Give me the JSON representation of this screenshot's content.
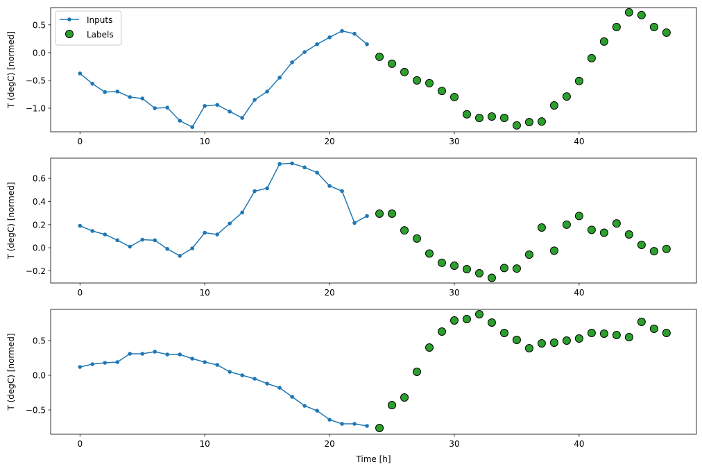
{
  "colors": {
    "inputs": "#1f77b4",
    "labels": "#2ca02c",
    "label_edge": "#000000"
  },
  "chart_data": [
    {
      "type": "line",
      "ylabel": "T (degC) [normed]",
      "xlabel": "",
      "xlim": [
        -2.35,
        49.4
      ],
      "ylim": [
        -1.425,
        0.81
      ],
      "xticks": [
        0,
        10,
        20,
        30,
        40
      ],
      "yticks": [
        -1.0,
        -0.5,
        0.0,
        0.5
      ],
      "ytick_labels": [
        "−1.0",
        "−0.5",
        "0.0",
        "0.5"
      ],
      "legend": {
        "placement": "top-left",
        "entries": [
          "Inputs",
          "Labels"
        ]
      },
      "series": [
        {
          "name": "Inputs",
          "x_start": 0,
          "values": [
            -0.375,
            -0.56,
            -0.71,
            -0.7,
            -0.8,
            -0.825,
            -1.0,
            -0.99,
            -1.225,
            -1.34,
            -0.96,
            -0.94,
            -1.06,
            -1.175,
            -0.85,
            -0.7,
            -0.45,
            -0.175,
            0.01,
            0.15,
            0.275,
            0.39,
            0.34,
            0.15
          ]
        },
        {
          "name": "Labels",
          "x_start": 24,
          "values": [
            -0.075,
            -0.2,
            -0.35,
            -0.5,
            -0.55,
            -0.69,
            -0.8,
            -1.11,
            -1.175,
            -1.15,
            -1.175,
            -1.31,
            -1.25,
            -1.24,
            -0.95,
            -0.79,
            -0.51,
            -0.1,
            0.2,
            0.46,
            0.725,
            0.675,
            0.46,
            0.36
          ]
        }
      ]
    },
    {
      "type": "line",
      "ylabel": "T (degC) [normed]",
      "xlabel": "",
      "xlim": [
        -2.35,
        49.4
      ],
      "ylim": [
        -0.305,
        0.775
      ],
      "xticks": [
        0,
        10,
        20,
        30,
        40
      ],
      "yticks": [
        -0.2,
        0.0,
        0.2,
        0.4,
        0.6
      ],
      "ytick_labels": [
        "−0.2",
        "0.0",
        "0.2",
        "0.4",
        "0.6"
      ],
      "series": [
        {
          "name": "Inputs",
          "x_start": 0,
          "values": [
            0.19,
            0.145,
            0.115,
            0.065,
            0.01,
            0.07,
            0.065,
            -0.01,
            -0.07,
            -0.005,
            0.13,
            0.115,
            0.21,
            0.305,
            0.49,
            0.515,
            0.725,
            0.73,
            0.695,
            0.65,
            0.535,
            0.49,
            0.215,
            0.275
          ]
        },
        {
          "name": "Labels",
          "x_start": 24,
          "values": [
            0.295,
            0.295,
            0.15,
            0.08,
            -0.05,
            -0.13,
            -0.155,
            -0.185,
            -0.22,
            -0.26,
            -0.175,
            -0.18,
            -0.06,
            0.175,
            -0.025,
            0.2,
            0.275,
            0.155,
            0.13,
            0.21,
            0.115,
            0.025,
            -0.03,
            -0.01
          ]
        }
      ]
    },
    {
      "type": "line",
      "ylabel": "T (degC) [normed]",
      "xlabel": "Time [h]",
      "xlim": [
        -2.35,
        49.4
      ],
      "ylim": [
        -0.85,
        0.95
      ],
      "xticks": [
        0,
        10,
        20,
        30,
        40
      ],
      "yticks": [
        -0.5,
        0.0,
        0.5
      ],
      "ytick_labels": [
        "−0.5",
        "0.0",
        "0.5"
      ],
      "series": [
        {
          "name": "Inputs",
          "x_start": 0,
          "values": [
            0.12,
            0.16,
            0.18,
            0.19,
            0.31,
            0.31,
            0.34,
            0.3,
            0.3,
            0.24,
            0.19,
            0.15,
            0.05,
            0.0,
            -0.05,
            -0.12,
            -0.18,
            -0.31,
            -0.44,
            -0.51,
            -0.64,
            -0.7,
            -0.7,
            -0.73
          ]
        },
        {
          "name": "Labels",
          "x_start": 24,
          "values": [
            -0.76,
            -0.43,
            -0.32,
            0.05,
            0.4,
            0.63,
            0.79,
            0.81,
            0.88,
            0.76,
            0.61,
            0.51,
            0.39,
            0.46,
            0.47,
            0.5,
            0.53,
            0.61,
            0.6,
            0.58,
            0.55,
            0.77,
            0.67,
            0.61
          ]
        }
      ]
    }
  ]
}
